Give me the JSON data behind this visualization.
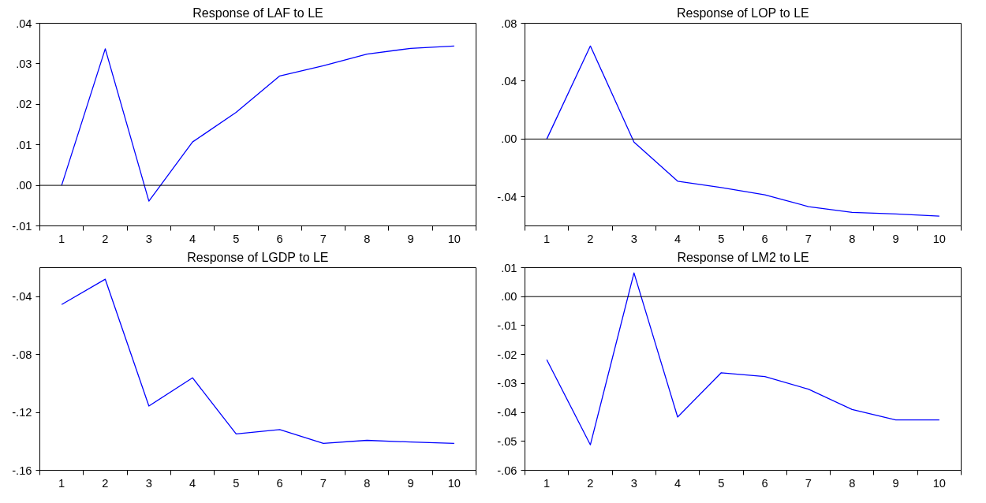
{
  "chart_data": [
    {
      "type": "line",
      "title": "Response of LAF to LE",
      "categories": [
        "1",
        "2",
        "3",
        "4",
        "5",
        "6",
        "7",
        "8",
        "9",
        "10"
      ],
      "series": [
        {
          "color": "#0000ff",
          "values": [
            0.0,
            0.0337,
            -0.0039,
            0.0107,
            0.018,
            0.027,
            0.0295,
            0.0324,
            0.0338,
            0.0344
          ]
        }
      ],
      "ylim": [
        -0.01,
        0.04
      ],
      "yticks": [
        {
          "value": -0.01,
          "label": "-.01"
        },
        {
          "value": 0.0,
          "label": ".00"
        },
        {
          "value": 0.01,
          "label": ".01"
        },
        {
          "value": 0.02,
          "label": ".02"
        },
        {
          "value": 0.03,
          "label": ".03"
        },
        {
          "value": 0.04,
          "label": ".04"
        }
      ],
      "ref_lines": [
        {
          "axis": "y",
          "value": 0,
          "color": "#000000"
        }
      ],
      "grid": false
    },
    {
      "type": "line",
      "title": "Response of LOP to LE",
      "categories": [
        "1",
        "2",
        "3",
        "4",
        "5",
        "6",
        "7",
        "8",
        "9",
        "10"
      ],
      "series": [
        {
          "color": "#0000ff",
          "values": [
            0.0,
            0.0643,
            -0.0021,
            -0.0291,
            -0.0335,
            -0.0385,
            -0.0467,
            -0.0507,
            -0.0518,
            -0.0533
          ]
        }
      ],
      "ylim": [
        -0.06,
        0.08
      ],
      "yticks": [
        {
          "value": -0.04,
          "label": "-.04"
        },
        {
          "value": 0.0,
          "label": ".00"
        },
        {
          "value": 0.04,
          "label": ".04"
        },
        {
          "value": 0.08,
          "label": ".08"
        }
      ],
      "ref_lines": [
        {
          "axis": "y",
          "value": 0,
          "color": "#000000"
        }
      ],
      "grid": false
    },
    {
      "type": "line",
      "title": "Response of LGDP to LE",
      "categories": [
        "1",
        "2",
        "3",
        "4",
        "5",
        "6",
        "7",
        "8",
        "9",
        "10"
      ],
      "series": [
        {
          "color": "#0000ff",
          "values": [
            -0.0455,
            -0.028,
            -0.1156,
            -0.0961,
            -0.1349,
            -0.1319,
            -0.1414,
            -0.1393,
            -0.1405,
            -0.1414
          ]
        }
      ],
      "ylim": [
        -0.16,
        -0.02
      ],
      "yticks": [
        {
          "value": -0.16,
          "label": "-.16"
        },
        {
          "value": -0.12,
          "label": "-.12"
        },
        {
          "value": -0.08,
          "label": "-.08"
        },
        {
          "value": -0.04,
          "label": "-.04"
        }
      ],
      "grid": false
    },
    {
      "type": "line",
      "title": "Response of LM2 to LE",
      "categories": [
        "1",
        "2",
        "3",
        "4",
        "5",
        "6",
        "7",
        "8",
        "9",
        "10"
      ],
      "series": [
        {
          "color": "#0000ff",
          "values": [
            -0.0218,
            -0.0512,
            0.0082,
            -0.0416,
            -0.0263,
            -0.0276,
            -0.032,
            -0.039,
            -0.0426,
            -0.0426
          ]
        }
      ],
      "ylim": [
        -0.06,
        0.01
      ],
      "yticks": [
        {
          "value": -0.06,
          "label": "-.06"
        },
        {
          "value": -0.05,
          "label": "-.05"
        },
        {
          "value": -0.04,
          "label": "-.04"
        },
        {
          "value": -0.03,
          "label": "-.03"
        },
        {
          "value": -0.02,
          "label": "-.02"
        },
        {
          "value": -0.01,
          "label": "-.01"
        },
        {
          "value": 0.0,
          "label": ".00"
        },
        {
          "value": 0.01,
          "label": ".01"
        }
      ],
      "ref_lines": [
        {
          "axis": "y",
          "value": 0,
          "color": "#000000"
        }
      ],
      "grid": false
    }
  ]
}
